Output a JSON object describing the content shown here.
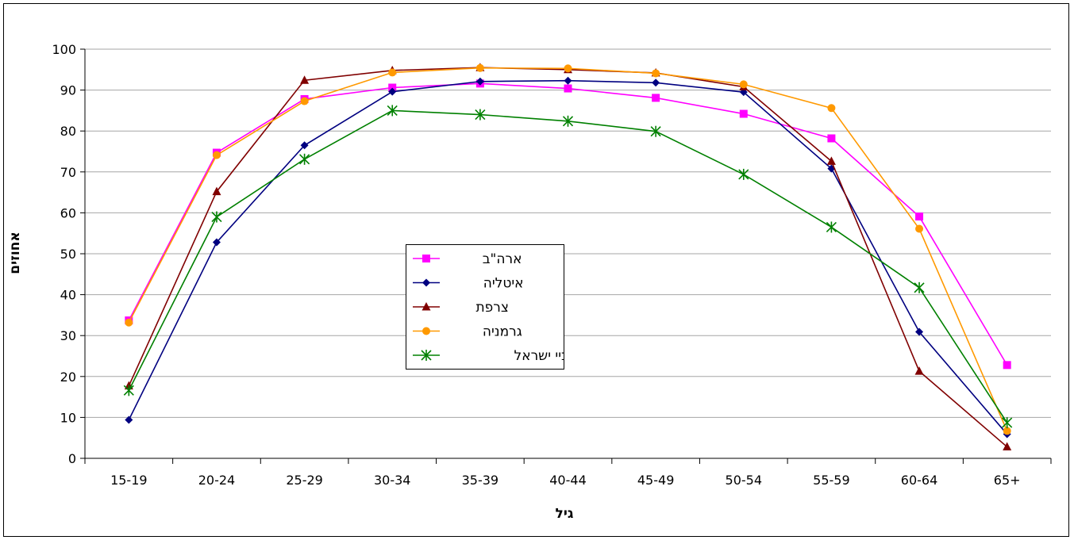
{
  "chart_data": {
    "type": "line",
    "title": "",
    "xlabel": "גיל",
    "ylabel": "אחוזים",
    "categories": [
      "15-19",
      "20-24",
      "25-29",
      "30-34",
      "35-39",
      "40-44",
      "45-49",
      "50-54",
      "55-59",
      "60-64",
      "65+"
    ],
    "ylim": [
      0,
      100
    ],
    "yticks": [
      0,
      10,
      20,
      30,
      40,
      50,
      60,
      70,
      80,
      90,
      100
    ],
    "grid": true,
    "legend_position": "center",
    "series": [
      {
        "name": "ארה\"ב",
        "color": "#FF00FF",
        "marker": "square",
        "values": [
          33.7,
          74.7,
          87.8,
          90.6,
          91.6,
          90.4,
          88.1,
          84.2,
          78.2,
          59.1,
          22.8
        ]
      },
      {
        "name": "איטליה",
        "color": "#000080",
        "marker": "diamond",
        "values": [
          9.4,
          52.8,
          76.5,
          89.6,
          92.1,
          92.3,
          91.8,
          89.5,
          70.8,
          30.9,
          5.9
        ]
      },
      {
        "name": "צרפת",
        "color": "#800000",
        "marker": "triangle",
        "values": [
          17.7,
          65.2,
          92.4,
          94.8,
          95.5,
          95.0,
          94.2,
          90.8,
          72.6,
          21.3,
          2.8
        ]
      },
      {
        "name": "גרמניה",
        "color": "#FF9900",
        "marker": "circle",
        "values": [
          33.2,
          74.1,
          87.3,
          94.3,
          95.4,
          95.3,
          94.1,
          91.4,
          85.6,
          56.1,
          6.7
        ]
      },
      {
        "name": "ערביי ישראל",
        "color": "#008000",
        "marker": "star",
        "values": [
          16.6,
          59.0,
          73.1,
          85.0,
          84.0,
          82.4,
          79.9,
          69.4,
          56.5,
          41.7,
          8.7
        ]
      }
    ]
  }
}
